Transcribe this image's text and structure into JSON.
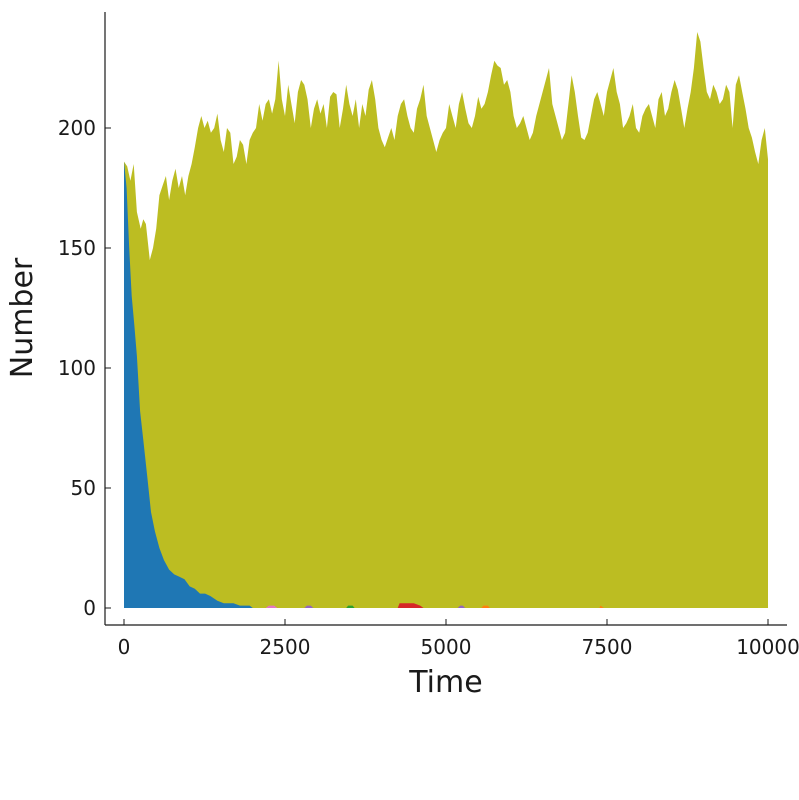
{
  "chart_data": {
    "type": "area",
    "stacked": true,
    "title": "",
    "xlabel": "Time",
    "ylabel": "Number",
    "xlim": [
      0,
      10000
    ],
    "ylim": [
      0,
      240
    ],
    "x_ticks": [
      0,
      2500,
      5000,
      7500,
      10000
    ],
    "x_tick_labels": [
      "0",
      "2500",
      "5000",
      "7500",
      "10000"
    ],
    "y_ticks": [
      0,
      50,
      100,
      150,
      200
    ],
    "y_tick_labels": [
      "0",
      "50",
      "100",
      "150",
      "200"
    ],
    "grid": false,
    "legend": "none",
    "series": [
      {
        "color": "#1f77b4",
        "points": [
          [
            0,
            186
          ],
          [
            40,
            175
          ],
          [
            80,
            150
          ],
          [
            120,
            130
          ],
          [
            160,
            118
          ],
          [
            200,
            105
          ],
          [
            250,
            82
          ],
          [
            300,
            70
          ],
          [
            360,
            55
          ],
          [
            420,
            40
          ],
          [
            480,
            32
          ],
          [
            550,
            25
          ],
          [
            620,
            20
          ],
          [
            700,
            16
          ],
          [
            780,
            14
          ],
          [
            860,
            13
          ],
          [
            940,
            12
          ],
          [
            1020,
            9
          ],
          [
            1100,
            8
          ],
          [
            1180,
            6
          ],
          [
            1260,
            6
          ],
          [
            1340,
            5
          ],
          [
            1450,
            3
          ],
          [
            1550,
            2
          ],
          [
            1700,
            2
          ],
          [
            1800,
            1
          ],
          [
            1950,
            1
          ],
          [
            2000,
            0
          ],
          [
            10000,
            0
          ]
        ]
      },
      {
        "color": "#d62728",
        "points": [
          [
            0,
            0
          ],
          [
            4250,
            0
          ],
          [
            4280,
            2
          ],
          [
            4500,
            2
          ],
          [
            4600,
            1
          ],
          [
            4650,
            0
          ],
          [
            10000,
            0
          ]
        ]
      },
      {
        "color": "#e377c2",
        "points": [
          [
            0,
            0
          ],
          [
            2200,
            0
          ],
          [
            2250,
            1
          ],
          [
            2330,
            1
          ],
          [
            2380,
            0
          ],
          [
            10000,
            0
          ]
        ]
      },
      {
        "color": "#9467bd",
        "points": [
          [
            0,
            0
          ],
          [
            2800,
            0
          ],
          [
            2840,
            1
          ],
          [
            2900,
            1
          ],
          [
            2940,
            0
          ],
          [
            5180,
            0
          ],
          [
            5220,
            1
          ],
          [
            5260,
            1
          ],
          [
            5300,
            0
          ],
          [
            10000,
            0
          ]
        ]
      },
      {
        "color": "#2ca02c",
        "points": [
          [
            0,
            0
          ],
          [
            3450,
            0
          ],
          [
            3480,
            1
          ],
          [
            3550,
            1
          ],
          [
            3580,
            0
          ],
          [
            10000,
            0
          ]
        ]
      },
      {
        "color": "#ff7f0e",
        "points": [
          [
            0,
            0
          ],
          [
            5550,
            0
          ],
          [
            5580,
            1
          ],
          [
            5650,
            1
          ],
          [
            5680,
            0
          ],
          [
            7380,
            0
          ],
          [
            7400,
            1
          ],
          [
            7450,
            0
          ],
          [
            10000,
            0
          ]
        ]
      },
      {
        "color": "#bcbd22",
        "points": [
          [
            0,
            186
          ],
          [
            50,
            184
          ],
          [
            100,
            178
          ],
          [
            150,
            185
          ],
          [
            200,
            165
          ],
          [
            260,
            158
          ],
          [
            300,
            162
          ],
          [
            340,
            160
          ],
          [
            400,
            145
          ],
          [
            450,
            150
          ],
          [
            500,
            158
          ],
          [
            550,
            172
          ],
          [
            600,
            176
          ],
          [
            650,
            180
          ],
          [
            700,
            170
          ],
          [
            750,
            178
          ],
          [
            800,
            183
          ],
          [
            850,
            175
          ],
          [
            900,
            180
          ],
          [
            950,
            172
          ],
          [
            1000,
            180
          ],
          [
            1050,
            185
          ],
          [
            1100,
            192
          ],
          [
            1150,
            200
          ],
          [
            1200,
            205
          ],
          [
            1250,
            200
          ],
          [
            1300,
            203
          ],
          [
            1350,
            198
          ],
          [
            1400,
            200
          ],
          [
            1450,
            206
          ],
          [
            1500,
            195
          ],
          [
            1550,
            190
          ],
          [
            1600,
            200
          ],
          [
            1650,
            198
          ],
          [
            1700,
            185
          ],
          [
            1750,
            188
          ],
          [
            1800,
            195
          ],
          [
            1850,
            193
          ],
          [
            1900,
            185
          ],
          [
            1950,
            195
          ],
          [
            2000,
            198
          ],
          [
            2050,
            200
          ],
          [
            2100,
            210
          ],
          [
            2150,
            203
          ],
          [
            2200,
            210
          ],
          [
            2250,
            212
          ],
          [
            2300,
            206
          ],
          [
            2350,
            212
          ],
          [
            2400,
            228
          ],
          [
            2450,
            212
          ],
          [
            2500,
            205
          ],
          [
            2550,
            218
          ],
          [
            2600,
            210
          ],
          [
            2650,
            202
          ],
          [
            2700,
            215
          ],
          [
            2750,
            220
          ],
          [
            2800,
            218
          ],
          [
            2850,
            212
          ],
          [
            2900,
            200
          ],
          [
            2950,
            208
          ],
          [
            3000,
            212
          ],
          [
            3050,
            206
          ],
          [
            3100,
            210
          ],
          [
            3150,
            200
          ],
          [
            3200,
            213
          ],
          [
            3250,
            215
          ],
          [
            3300,
            214
          ],
          [
            3350,
            200
          ],
          [
            3400,
            208
          ],
          [
            3450,
            218
          ],
          [
            3500,
            210
          ],
          [
            3550,
            205
          ],
          [
            3600,
            212
          ],
          [
            3650,
            200
          ],
          [
            3700,
            210
          ],
          [
            3750,
            205
          ],
          [
            3800,
            216
          ],
          [
            3850,
            220
          ],
          [
            3900,
            212
          ],
          [
            3950,
            200
          ],
          [
            4000,
            195
          ],
          [
            4050,
            192
          ],
          [
            4100,
            196
          ],
          [
            4150,
            200
          ],
          [
            4200,
            195
          ],
          [
            4250,
            205
          ],
          [
            4300,
            210
          ],
          [
            4350,
            212
          ],
          [
            4400,
            205
          ],
          [
            4450,
            200
          ],
          [
            4500,
            198
          ],
          [
            4550,
            208
          ],
          [
            4600,
            212
          ],
          [
            4650,
            218
          ],
          [
            4700,
            205
          ],
          [
            4750,
            200
          ],
          [
            4800,
            195
          ],
          [
            4850,
            190
          ],
          [
            4900,
            195
          ],
          [
            4950,
            198
          ],
          [
            5000,
            200
          ],
          [
            5050,
            210
          ],
          [
            5100,
            205
          ],
          [
            5150,
            200
          ],
          [
            5200,
            210
          ],
          [
            5250,
            215
          ],
          [
            5300,
            208
          ],
          [
            5350,
            202
          ],
          [
            5400,
            200
          ],
          [
            5450,
            205
          ],
          [
            5500,
            213
          ],
          [
            5550,
            208
          ],
          [
            5600,
            210
          ],
          [
            5650,
            215
          ],
          [
            5700,
            222
          ],
          [
            5750,
            228
          ],
          [
            5800,
            226
          ],
          [
            5850,
            225
          ],
          [
            5900,
            218
          ],
          [
            5950,
            220
          ],
          [
            6000,
            215
          ],
          [
            6050,
            205
          ],
          [
            6100,
            200
          ],
          [
            6150,
            202
          ],
          [
            6200,
            205
          ],
          [
            6250,
            200
          ],
          [
            6300,
            195
          ],
          [
            6350,
            198
          ],
          [
            6400,
            205
          ],
          [
            6450,
            210
          ],
          [
            6500,
            215
          ],
          [
            6550,
            220
          ],
          [
            6600,
            225
          ],
          [
            6650,
            210
          ],
          [
            6700,
            205
          ],
          [
            6750,
            200
          ],
          [
            6800,
            195
          ],
          [
            6850,
            198
          ],
          [
            6900,
            210
          ],
          [
            6950,
            222
          ],
          [
            7000,
            215
          ],
          [
            7050,
            205
          ],
          [
            7100,
            196
          ],
          [
            7150,
            195
          ],
          [
            7200,
            198
          ],
          [
            7250,
            205
          ],
          [
            7300,
            212
          ],
          [
            7350,
            215
          ],
          [
            7400,
            210
          ],
          [
            7450,
            205
          ],
          [
            7500,
            215
          ],
          [
            7550,
            220
          ],
          [
            7600,
            225
          ],
          [
            7650,
            215
          ],
          [
            7700,
            210
          ],
          [
            7750,
            200
          ],
          [
            7800,
            202
          ],
          [
            7850,
            205
          ],
          [
            7900,
            210
          ],
          [
            7950,
            200
          ],
          [
            8000,
            198
          ],
          [
            8050,
            205
          ],
          [
            8100,
            208
          ],
          [
            8150,
            210
          ],
          [
            8200,
            205
          ],
          [
            8250,
            200
          ],
          [
            8300,
            212
          ],
          [
            8350,
            215
          ],
          [
            8400,
            205
          ],
          [
            8450,
            208
          ],
          [
            8500,
            215
          ],
          [
            8550,
            220
          ],
          [
            8600,
            216
          ],
          [
            8650,
            208
          ],
          [
            8700,
            200
          ],
          [
            8750,
            208
          ],
          [
            8800,
            215
          ],
          [
            8850,
            225
          ],
          [
            8900,
            240
          ],
          [
            8950,
            236
          ],
          [
            9000,
            225
          ],
          [
            9050,
            215
          ],
          [
            9100,
            212
          ],
          [
            9150,
            218
          ],
          [
            9200,
            215
          ],
          [
            9250,
            210
          ],
          [
            9300,
            212
          ],
          [
            9350,
            218
          ],
          [
            9400,
            215
          ],
          [
            9450,
            200
          ],
          [
            9500,
            218
          ],
          [
            9550,
            222
          ],
          [
            9600,
            215
          ],
          [
            9650,
            208
          ],
          [
            9700,
            200
          ],
          [
            9750,
            196
          ],
          [
            9800,
            190
          ],
          [
            9850,
            185
          ],
          [
            9900,
            195
          ],
          [
            9950,
            200
          ],
          [
            10000,
            187
          ]
        ]
      }
    ]
  }
}
